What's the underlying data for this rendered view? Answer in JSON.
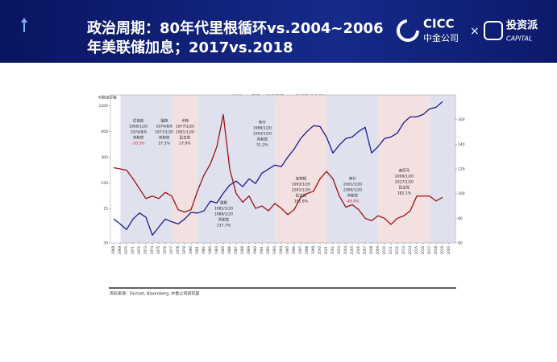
{
  "header": {
    "title_line1": "政治周期：80年代里根循环vs.2004~2006",
    "title_line2": "年美联储加息；2017vs.2018",
    "logo1_en": "CICC",
    "logo1_cn": "中金公司",
    "times": "×",
    "logo2_cn": "投资派",
    "logo2_en": "CAPITAL"
  },
  "chart_data": {
    "type": "line",
    "title": "标普500指数、美元指数 vs. 美国政治周期",
    "y_axis_label": "对数坐标轴",
    "log_scale": true,
    "x": [
      1968,
      1969,
      1970,
      1971,
      1972,
      1973,
      1974,
      1975,
      1976,
      1977,
      1978,
      1979,
      1980,
      1981,
      1982,
      1983,
      1984,
      1985,
      1986,
      1987,
      1988,
      1989,
      1990,
      1991,
      1992,
      1993,
      1994,
      1995,
      1996,
      1997,
      1998,
      1999,
      2000,
      2001,
      2002,
      2003,
      2004,
      2005,
      2006,
      2007,
      2008,
      2009,
      2010,
      2011,
      2012,
      2013,
      2014,
      2015,
      2016,
      2017,
      2018,
      2019
    ],
    "xlim": [
      1967.5,
      2021
    ],
    "xticks": [
      1968,
      1969,
      1970,
      1971,
      1972,
      1973,
      1974,
      1975,
      1976,
      1977,
      1978,
      1979,
      1980,
      1981,
      1982,
      1983,
      1984,
      1985,
      1986,
      1987,
      1988,
      1989,
      1990,
      1991,
      1992,
      1993,
      1994,
      1995,
      1996,
      1997,
      1998,
      1999,
      2000,
      2001,
      2002,
      2003,
      2004,
      2005,
      2006,
      2007,
      2008,
      2009,
      2010,
      2011,
      2012,
      2013,
      2014,
      2015,
      2016,
      2017,
      2018,
      2019,
      2020
    ],
    "ylim": [
      30,
      1600
    ],
    "yticks": [
      30,
      75,
      150,
      300,
      600,
      1200
    ],
    "y2lim": [
      60,
      180
    ],
    "y2ticks": [
      60,
      80,
      100,
      120,
      140,
      160
    ],
    "series": [
      {
        "color": "#1c1c8f",
        "values": [
          57,
          50,
          43,
          57,
          67,
          60,
          37,
          46,
          57,
          53,
          50,
          57,
          68,
          67,
          71,
          92,
          88,
          114,
          142,
          158,
          136,
          168,
          148,
          196,
          218,
          243,
          233,
          301,
          374,
          496,
          601,
          700,
          684,
          517,
          336,
          417,
          496,
          517,
          601,
          670,
          336,
          399,
          496,
          517,
          576,
          763,
          888,
          888,
          947,
          1102,
          1149,
          1337
        ]
      },
      {
        "color": "#9e1212",
        "axis": "y2",
        "values": [
          121,
          120,
          119,
          112,
          104,
          96,
          98,
          96,
          101,
          98,
          87,
          85,
          87,
          102,
          115,
          124,
          138,
          164,
          120,
          100,
          93,
          98,
          88,
          90,
          86,
          92,
          88,
          83,
          87,
          97,
          100,
          102,
          112,
          118,
          112,
          98,
          89,
          91,
          87,
          80,
          78,
          82,
          80,
          75,
          80,
          82,
          86,
          98,
          98,
          98,
          94,
          97
        ]
      }
    ],
    "bands": [
      {
        "x0": 1969.05,
        "x1": 1974.6,
        "color": "#dfe1ef",
        "name": "尼克松",
        "start": "1969/1/20",
        "end": "1974/8/9",
        "party": "共和党",
        "return": "-20.5%"
      },
      {
        "x0": 1974.6,
        "x1": 1977.05,
        "color": "#dfe1ef",
        "name": "福特",
        "start": "1974/8/9",
        "end": "1977/1/20",
        "party": "共和党",
        "return": "27.3%"
      },
      {
        "x0": 1977.05,
        "x1": 1981.05,
        "color": "#f3e0e0",
        "name": "卡特",
        "start": "1977/1/20",
        "end": "1981/1/20",
        "party": "民主党",
        "return": "27.9%"
      },
      {
        "x0": 1981.05,
        "x1": 1989.05,
        "color": "#dfe1ef",
        "name": "里根",
        "start": "1981/1/20",
        "end": "1989/1/20",
        "party": "共和党",
        "return": "137.7%"
      },
      {
        "x0": 1989.05,
        "x1": 1993.05,
        "color": "#dfe1ef",
        "name": "布什",
        "start": "1989/1/20",
        "end": "1993/1/20",
        "party": "共和党",
        "return": "51.2%"
      },
      {
        "x0": 1993.05,
        "x1": 2001.05,
        "color": "#f3e0e0",
        "name": "克林顿",
        "start": "1993/1/20",
        "end": "2001/1/20",
        "party": "民主党",
        "return": "105.8%"
      },
      {
        "x0": 2001.05,
        "x1": 2009.05,
        "color": "#dfe1ef",
        "name": "布什",
        "start": "2001/1/20",
        "end": "2009/1/20",
        "party": "共和党",
        "return": "-40.0%"
      },
      {
        "x0": 2009.05,
        "x1": 2017.05,
        "color": "#f3e0e0",
        "name": "奥巴马",
        "start": "2009/1/20",
        "end": "2017/1/20",
        "party": "民主党",
        "return": "182.1%"
      },
      {
        "x0": 2017.05,
        "x1": 2021,
        "color": "#dfe1ef"
      }
    ],
    "source": "资料来源：Factset, Bloomberg, 中金公司研究部"
  }
}
